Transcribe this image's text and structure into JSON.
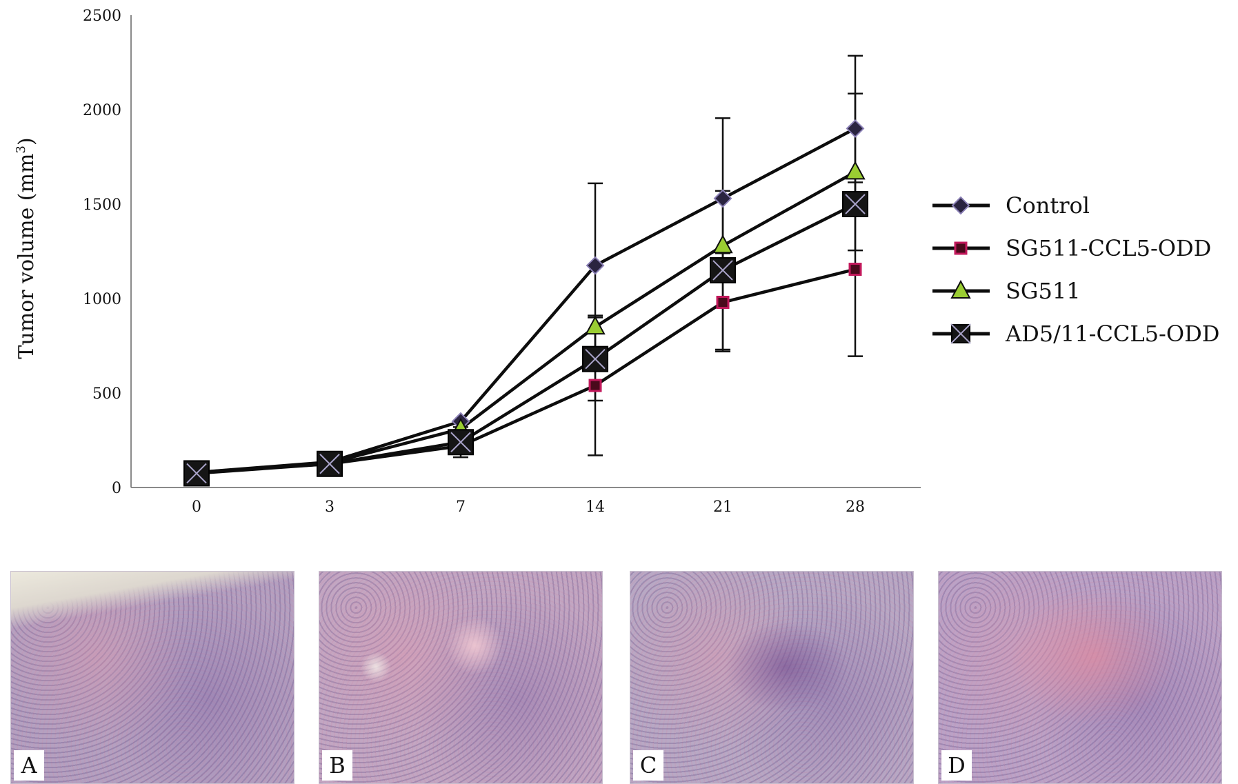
{
  "chart_data": {
    "type": "line",
    "title": "",
    "xlabel": "",
    "ylabel": "Tumor volume (mm",
    "ylabel_sup": "3",
    "ylabel_close": ")",
    "categories": [
      "0",
      "3",
      "7",
      "14",
      "21",
      "28"
    ],
    "y_ticks": [
      "0",
      "500",
      "1000",
      "1500",
      "2000",
      "2500"
    ],
    "ylim": [
      0,
      2500
    ],
    "grid": false,
    "legend_position": "right",
    "series": [
      {
        "name": "Control",
        "marker": "diamond",
        "color": "#2a2440",
        "values": [
          80,
          135,
          350,
          1175,
          1530,
          1900
        ],
        "errors": [
          null,
          null,
          null,
          435,
          425,
          385
        ]
      },
      {
        "name": "SG511-CCL5-ODD",
        "marker": "square-small",
        "color": "#c2185b",
        "values": [
          80,
          125,
          220,
          540,
          980,
          1155
        ],
        "errors": [
          null,
          null,
          null,
          370,
          260,
          460
        ]
      },
      {
        "name": "SG511",
        "marker": "triangle",
        "color": "#9acd32",
        "values": [
          80,
          130,
          310,
          850,
          1280,
          1670
        ],
        "errors": [
          null,
          null,
          null,
          null,
          null,
          415
        ]
      },
      {
        "name": "AD5/11-CCL5-ODD",
        "marker": "square-x",
        "color": "#1a1a1a",
        "values": [
          75,
          125,
          240,
          680,
          1150,
          1500
        ],
        "errors": [
          null,
          null,
          80,
          220,
          420,
          null
        ]
      }
    ]
  },
  "panels": [
    {
      "label": "A",
      "base": "#b4a0c0"
    },
    {
      "label": "B",
      "base": "#c2a6c2"
    },
    {
      "label": "C",
      "base": "#b8a8c4"
    },
    {
      "label": "D",
      "base": "#bba2c6"
    }
  ]
}
